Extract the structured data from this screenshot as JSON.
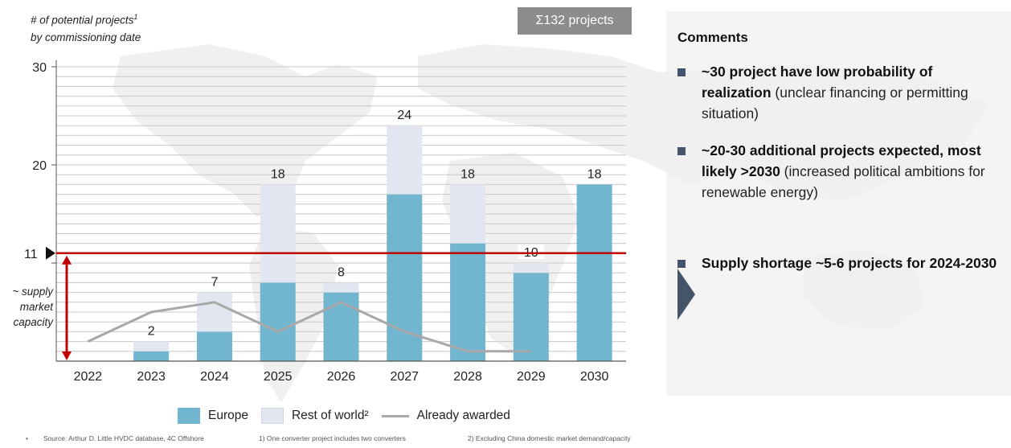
{
  "y_title": {
    "line1": "# of potential projects",
    "sup": "1",
    "line2": "by commissioning date"
  },
  "total_badge": "Σ132 projects",
  "supply_marker": {
    "value": 11,
    "label": "11",
    "text": [
      "~ supply",
      "market",
      "capacity"
    ]
  },
  "colors": {
    "europe": "#71b5cf",
    "rest": "#e1e6f0",
    "awarded": "#a8a8a8",
    "capacity_line": "#c00000",
    "bullet": "#44546a"
  },
  "chart_data": {
    "type": "bar",
    "categories": [
      "2022",
      "2023",
      "2024",
      "2025",
      "2026",
      "2027",
      "2028",
      "2029",
      "2030"
    ],
    "series": [
      {
        "name": "Europe",
        "values": [
          0,
          1,
          3,
          8,
          7,
          17,
          12,
          9,
          18
        ]
      },
      {
        "name": "Rest of world",
        "values": [
          0,
          1,
          4,
          10,
          1,
          7,
          6,
          1,
          0
        ]
      }
    ],
    "totals": [
      0,
      2,
      7,
      18,
      8,
      24,
      18,
      10,
      18
    ],
    "total_labels": [
      "",
      "2",
      "7",
      "18",
      "8",
      "24",
      "18",
      "10",
      "18"
    ],
    "line_series": {
      "name": "Already awarded",
      "values": [
        2,
        5,
        6,
        3,
        6,
        3,
        1,
        1,
        null
      ]
    },
    "ylim": [
      0,
      30
    ],
    "yticks": [
      10,
      20,
      30
    ],
    "ytick_labels": [
      "",
      "20",
      "30"
    ],
    "stacked": true,
    "grid": true,
    "reference_line": 11,
    "legend_position": "bottom"
  },
  "legend": {
    "europe": "Europe",
    "rest": "Rest of world²",
    "awarded": "Already awarded"
  },
  "footnotes": {
    "bullet": "•",
    "source": "Source: Arthur D. Little HVDC database, 4C Offshore",
    "note1": "1) One converter project includes two converters",
    "note2": "2) Excluding China domestic market demand/capacity"
  },
  "comments": {
    "title": "Comments",
    "items": [
      {
        "bold": "~30 project have low probability of realization",
        "rest": " (unclear financing or permitting situation)"
      },
      {
        "bold": "~20-30 additional projects expected, most likely >2030",
        "rest": " (increased political ambitions for renewable energy)"
      },
      {
        "bold": "Supply shortage ~5-6 projects for 2024-2030",
        "rest": ""
      }
    ]
  }
}
